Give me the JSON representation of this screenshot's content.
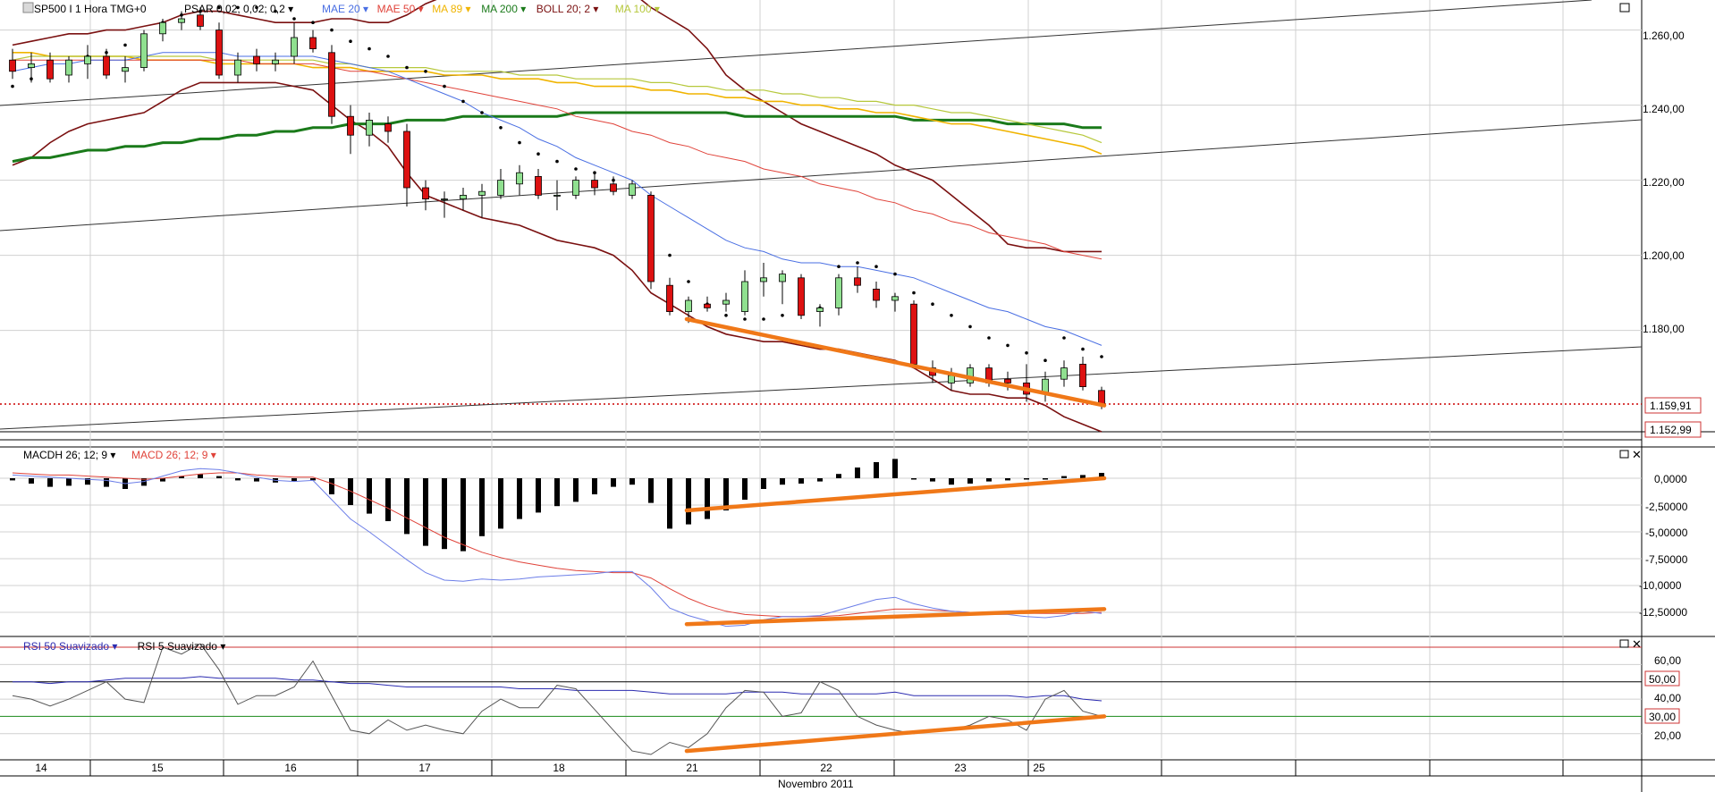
{
  "header": {
    "symbol": "SP500 I 1 Hora TMG+0",
    "indicators": [
      {
        "text": "PSAR 0,02; 0,02; 0,2",
        "color": "#000000"
      },
      {
        "text": "MAE 20",
        "color": "#4a6fe3"
      },
      {
        "text": "MAE 50",
        "color": "#e0433a"
      },
      {
        "text": "MA 89",
        "color": "#f0b400"
      },
      {
        "text": "MA 200",
        "color": "#1a7a1a"
      },
      {
        "text": "BOLL 20; 2",
        "color": "#7a1010"
      },
      {
        "text": "MA 100",
        "color": "#b6c83c"
      }
    ]
  },
  "macd_header": [
    {
      "text": "MACDH 26; 12; 9",
      "color": "#000000"
    },
    {
      "text": "MACD 26; 12; 9",
      "color": "#e0433a"
    }
  ],
  "rsi_header": [
    {
      "text": "RSI 50 Suavizado",
      "color": "#2b2bb0"
    },
    {
      "text": "RSI 5 Suavizado",
      "color": "#000000"
    }
  ],
  "price_axis": {
    "ticks": [
      "1.260,00",
      "1.240,00",
      "1.220,00",
      "1.200,00",
      "1.180,00"
    ],
    "last_price": "1.159,91",
    "low_price": "1.152,99"
  },
  "macd_axis": {
    "ticks": [
      "0,0000",
      "-2,50000",
      "-5,00000",
      "-7,50000",
      "-10,0000",
      "-12,50000"
    ]
  },
  "rsi_axis": {
    "ticks": [
      "60,00",
      "50,00",
      "40,00",
      "30,00",
      "20,00"
    ]
  },
  "x_axis": {
    "day_labels": [
      "14",
      "15",
      "16",
      "17",
      "18",
      "21",
      "22",
      "23",
      "25"
    ],
    "month_label": "Novembro 2011"
  },
  "chart_data": {
    "type": "candlestick",
    "ylim": [
      1153,
      1268
    ],
    "candles": [
      {
        "o": 1252,
        "h": 1255,
        "l": 1247,
        "c": 1249
      },
      {
        "o": 1250,
        "h": 1254,
        "l": 1246,
        "c": 1251
      },
      {
        "o": 1252,
        "h": 1254,
        "l": 1246,
        "c": 1247
      },
      {
        "o": 1248,
        "h": 1253,
        "l": 1246,
        "c": 1252
      },
      {
        "o": 1251,
        "h": 1256,
        "l": 1247,
        "c": 1253
      },
      {
        "o": 1253,
        "h": 1255,
        "l": 1247,
        "c": 1248
      },
      {
        "o": 1249,
        "h": 1253,
        "l": 1246,
        "c": 1250
      },
      {
        "o": 1250,
        "h": 1260,
        "l": 1249,
        "c": 1259
      },
      {
        "o": 1259,
        "h": 1263,
        "l": 1257,
        "c": 1262
      },
      {
        "o": 1262,
        "h": 1265,
        "l": 1260,
        "c": 1263
      },
      {
        "o": 1264,
        "h": 1266,
        "l": 1260,
        "c": 1261
      },
      {
        "o": 1260,
        "h": 1262,
        "l": 1247,
        "c": 1248
      },
      {
        "o": 1248,
        "h": 1254,
        "l": 1246,
        "c": 1252
      },
      {
        "o": 1253,
        "h": 1255,
        "l": 1249,
        "c": 1251
      },
      {
        "o": 1251,
        "h": 1254,
        "l": 1249,
        "c": 1252
      },
      {
        "o": 1253,
        "h": 1262,
        "l": 1251,
        "c": 1258
      },
      {
        "o": 1258,
        "h": 1260,
        "l": 1254,
        "c": 1255
      },
      {
        "o": 1254,
        "h": 1256,
        "l": 1235,
        "c": 1237
      },
      {
        "o": 1237,
        "h": 1240,
        "l": 1227,
        "c": 1232
      },
      {
        "o": 1232,
        "h": 1238,
        "l": 1229,
        "c": 1236
      },
      {
        "o": 1235,
        "h": 1237,
        "l": 1230,
        "c": 1233
      },
      {
        "o": 1233,
        "h": 1235,
        "l": 1213,
        "c": 1218
      },
      {
        "o": 1218,
        "h": 1220,
        "l": 1212,
        "c": 1215
      },
      {
        "o": 1215,
        "h": 1217,
        "l": 1210,
        "c": 1215
      },
      {
        "o": 1215,
        "h": 1218,
        "l": 1212,
        "c": 1216
      },
      {
        "o": 1216,
        "h": 1219,
        "l": 1210,
        "c": 1217
      },
      {
        "o": 1216,
        "h": 1223,
        "l": 1215,
        "c": 1220
      },
      {
        "o": 1219,
        "h": 1224,
        "l": 1216,
        "c": 1222
      },
      {
        "o": 1221,
        "h": 1223,
        "l": 1215,
        "c": 1216
      },
      {
        "o": 1216,
        "h": 1220,
        "l": 1212,
        "c": 1216
      },
      {
        "o": 1216,
        "h": 1221,
        "l": 1215,
        "c": 1220
      },
      {
        "o": 1220,
        "h": 1222,
        "l": 1216,
        "c": 1218
      },
      {
        "o": 1219,
        "h": 1221,
        "l": 1216,
        "c": 1217
      },
      {
        "o": 1216,
        "h": 1220,
        "l": 1215,
        "c": 1219
      },
      {
        "o": 1216,
        "h": 1217,
        "l": 1191,
        "c": 1193
      },
      {
        "o": 1192,
        "h": 1194,
        "l": 1184,
        "c": 1185
      },
      {
        "o": 1185,
        "h": 1189,
        "l": 1182,
        "c": 1188
      },
      {
        "o": 1187,
        "h": 1189,
        "l": 1185,
        "c": 1186
      },
      {
        "o": 1187,
        "h": 1190,
        "l": 1185,
        "c": 1188
      },
      {
        "o": 1185,
        "h": 1196,
        "l": 1184,
        "c": 1193
      },
      {
        "o": 1193,
        "h": 1198,
        "l": 1189,
        "c": 1194
      },
      {
        "o": 1193,
        "h": 1196,
        "l": 1187,
        "c": 1195
      },
      {
        "o": 1194,
        "h": 1195,
        "l": 1183,
        "c": 1184
      },
      {
        "o": 1185,
        "h": 1187,
        "l": 1181,
        "c": 1186
      },
      {
        "o": 1186,
        "h": 1195,
        "l": 1184,
        "c": 1194
      },
      {
        "o": 1194,
        "h": 1197,
        "l": 1190,
        "c": 1192
      },
      {
        "o": 1191,
        "h": 1193,
        "l": 1186,
        "c": 1188
      },
      {
        "o": 1188,
        "h": 1190,
        "l": 1185,
        "c": 1189
      },
      {
        "o": 1187,
        "h": 1188,
        "l": 1170,
        "c": 1171
      },
      {
        "o": 1170,
        "h": 1172,
        "l": 1166,
        "c": 1168
      },
      {
        "o": 1166,
        "h": 1170,
        "l": 1164,
        "c": 1168
      },
      {
        "o": 1166,
        "h": 1171,
        "l": 1165,
        "c": 1170
      },
      {
        "o": 1170,
        "h": 1171,
        "l": 1165,
        "c": 1166
      },
      {
        "o": 1167,
        "h": 1169,
        "l": 1164,
        "c": 1166
      },
      {
        "o": 1166,
        "h": 1171,
        "l": 1161,
        "c": 1163
      },
      {
        "o": 1163,
        "h": 1169,
        "l": 1161,
        "c": 1167
      },
      {
        "o": 1167,
        "h": 1172,
        "l": 1165,
        "c": 1170
      },
      {
        "o": 1171,
        "h": 1173,
        "l": 1164,
        "c": 1165
      },
      {
        "o": 1164,
        "h": 1165,
        "l": 1159,
        "c": 1160
      }
    ],
    "psar": [
      1245,
      1247,
      1249,
      1251,
      1253,
      1254,
      1256,
      1258,
      1262,
      1264,
      1265,
      1266,
      1266,
      1266,
      1265,
      1263,
      1262,
      1260,
      1257,
      1255,
      1253,
      1250,
      1249,
      1245,
      1241,
      1238,
      1234,
      1230,
      1227,
      1225,
      1223,
      1222,
      1220,
      1218,
      1210,
      1200,
      1193,
      1187,
      1184,
      1183,
      1183,
      1184,
      1185,
      1186,
      1197,
      1198,
      1197,
      1195,
      1190,
      1187,
      1184,
      1181,
      1178,
      1176,
      1174,
      1172,
      1178,
      1175,
      1173
    ],
    "mae20": [
      1249,
      1250,
      1251,
      1251,
      1252,
      1252,
      1252,
      1253,
      1254,
      1254,
      1254,
      1254,
      1253,
      1253,
      1253,
      1253,
      1253,
      1252,
      1251,
      1250,
      1249,
      1247,
      1245,
      1243,
      1241,
      1238,
      1236,
      1234,
      1231,
      1229,
      1226,
      1224,
      1222,
      1220,
      1216,
      1213,
      1210,
      1207,
      1204,
      1202,
      1201,
      1199,
      1198,
      1198,
      1197,
      1197,
      1196,
      1195,
      1194,
      1192,
      1190,
      1188,
      1186,
      1185,
      1183,
      1181,
      1180,
      1178,
      1176
    ],
    "mae50": [
      1252,
      1252,
      1252,
      1252,
      1252,
      1252,
      1252,
      1252,
      1252,
      1252,
      1252,
      1252,
      1252,
      1251,
      1251,
      1251,
      1251,
      1250,
      1249,
      1249,
      1248,
      1247,
      1246,
      1245,
      1244,
      1243,
      1242,
      1241,
      1240,
      1239,
      1237,
      1236,
      1235,
      1233,
      1232,
      1230,
      1229,
      1227,
      1226,
      1225,
      1223,
      1222,
      1221,
      1219,
      1218,
      1217,
      1215,
      1214,
      1212,
      1211,
      1209,
      1208,
      1206,
      1205,
      1204,
      1203,
      1201,
      1200,
      1199
    ],
    "ma89": [
      1254,
      1254,
      1253,
      1253,
      1253,
      1253,
      1253,
      1252,
      1252,
      1252,
      1252,
      1251,
      1251,
      1251,
      1251,
      1251,
      1250,
      1250,
      1250,
      1249,
      1249,
      1249,
      1249,
      1248,
      1248,
      1248,
      1247,
      1247,
      1247,
      1246,
      1246,
      1245,
      1245,
      1245,
      1244,
      1244,
      1243,
      1243,
      1242,
      1242,
      1241,
      1241,
      1240,
      1240,
      1239,
      1239,
      1238,
      1238,
      1237,
      1236,
      1235,
      1235,
      1234,
      1233,
      1232,
      1231,
      1230,
      1229,
      1227
    ],
    "ma100": [
      1252,
      1253,
      1253,
      1253,
      1253,
      1253,
      1253,
      1253,
      1253,
      1253,
      1253,
      1252,
      1252,
      1252,
      1252,
      1252,
      1252,
      1251,
      1251,
      1250,
      1250,
      1250,
      1250,
      1249,
      1249,
      1249,
      1249,
      1248,
      1248,
      1248,
      1247,
      1247,
      1247,
      1247,
      1246,
      1246,
      1245,
      1245,
      1244,
      1244,
      1244,
      1243,
      1243,
      1242,
      1242,
      1241,
      1241,
      1240,
      1240,
      1239,
      1238,
      1238,
      1237,
      1236,
      1235,
      1234,
      1233,
      1232,
      1230
    ],
    "ma200": [
      1225,
      1226,
      1226,
      1227,
      1228,
      1228,
      1229,
      1229,
      1230,
      1230,
      1231,
      1231,
      1232,
      1232,
      1233,
      1233,
      1234,
      1234,
      1235,
      1235,
      1235,
      1236,
      1236,
      1236,
      1237,
      1237,
      1237,
      1237,
      1237,
      1237,
      1238,
      1238,
      1238,
      1238,
      1238,
      1238,
      1238,
      1238,
      1238,
      1237,
      1237,
      1237,
      1237,
      1237,
      1237,
      1237,
      1237,
      1237,
      1236,
      1236,
      1236,
      1236,
      1236,
      1235,
      1235,
      1235,
      1235,
      1234,
      1234
    ],
    "boll_upper": [
      1256,
      1257,
      1258,
      1259,
      1259,
      1260,
      1260,
      1261,
      1262,
      1264,
      1265,
      1265,
      1264,
      1263,
      1262,
      1262,
      1262,
      1263,
      1263,
      1262,
      1262,
      1264,
      1267,
      1269,
      1270,
      1270,
      1271,
      1272,
      1273,
      1273,
      1273,
      1272,
      1271,
      1270,
      1266,
      1263,
      1260,
      1255,
      1248,
      1244,
      1241,
      1238,
      1235,
      1233,
      1231,
      1229,
      1227,
      1224,
      1222,
      1220,
      1216,
      1212,
      1208,
      1203,
      1202,
      1202,
      1201,
      1201,
      1201
    ],
    "boll_lower": [
      1224,
      1226,
      1230,
      1233,
      1235,
      1236,
      1237,
      1238,
      1241,
      1244,
      1246,
      1246,
      1246,
      1246,
      1246,
      1245,
      1244,
      1240,
      1236,
      1233,
      1229,
      1222,
      1216,
      1214,
      1212,
      1210,
      1209,
      1208,
      1206,
      1204,
      1203,
      1202,
      1200,
      1196,
      1190,
      1187,
      1184,
      1181,
      1179,
      1178,
      1177,
      1177,
      1176,
      1175,
      1175,
      1174,
      1173,
      1172,
      1170,
      1167,
      1164,
      1163,
      1163,
      1162,
      1162,
      1160,
      1157,
      1155,
      1153
    ],
    "trendlines_price": [
      {
        "from": [
          36,
          1183
        ],
        "to": [
          58,
          1160
        ]
      }
    ],
    "macd_hist": [
      -0.2,
      -0.5,
      -0.8,
      -0.7,
      -0.6,
      -0.8,
      -1.0,
      -0.7,
      -0.3,
      0.2,
      0.4,
      0.2,
      -0.2,
      -0.3,
      -0.4,
      -0.3,
      -0.2,
      -1.5,
      -2.5,
      -3.3,
      -4.0,
      -5.2,
      -6.3,
      -6.6,
      -6.8,
      -5.4,
      -4.7,
      -3.8,
      -3.2,
      -2.6,
      -2.2,
      -1.5,
      -0.8,
      -0.6,
      -2.3,
      -4.7,
      -4.3,
      -3.8,
      -3.0,
      -2.0,
      -1.0,
      -0.6,
      -0.5,
      -0.3,
      0.4,
      1.0,
      1.5,
      1.8,
      -0.1,
      -0.3,
      -0.6,
      -0.5,
      -0.3,
      -0.2,
      -0.1,
      0.0,
      0.2,
      0.3,
      0.5
    ],
    "macd_line": [
      0.3,
      0.2,
      0.1,
      0.0,
      -0.1,
      -0.2,
      -0.5,
      -0.3,
      0.2,
      0.7,
      0.9,
      0.8,
      0.5,
      0.1,
      -0.2,
      -0.3,
      -0.2,
      -2.0,
      -3.8,
      -5.0,
      -6.3,
      -7.6,
      -8.8,
      -9.5,
      -9.6,
      -9.4,
      -9.5,
      -9.4,
      -9.2,
      -9.1,
      -9.0,
      -8.9,
      -8.7,
      -8.7,
      -10.2,
      -12.1,
      -12.8,
      -13.3,
      -13.8,
      -13.7,
      -13.2,
      -12.9,
      -12.9,
      -12.8,
      -12.3,
      -11.8,
      -11.3,
      -11.1,
      -11.7,
      -12.1,
      -12.4,
      -12.5,
      -12.7,
      -12.7,
      -12.9,
      -13.0,
      -12.8,
      -12.4,
      -12.6
    ],
    "macd_signal": [
      0.5,
      0.4,
      0.3,
      0.3,
      0.2,
      0.1,
      0.0,
      -0.1,
      0.0,
      0.2,
      0.4,
      0.5,
      0.5,
      0.3,
      0.2,
      0.1,
      0.1,
      -0.5,
      -1.2,
      -2.0,
      -2.8,
      -3.7,
      -4.6,
      -5.5,
      -6.2,
      -6.9,
      -7.4,
      -7.8,
      -8.1,
      -8.4,
      -8.6,
      -8.7,
      -8.8,
      -8.8,
      -9.3,
      -10.3,
      -11.2,
      -11.9,
      -12.4,
      -12.7,
      -12.8,
      -12.9,
      -12.9,
      -12.9,
      -12.8,
      -12.6,
      -12.4,
      -12.2,
      -12.2,
      -12.3,
      -12.4,
      -12.5,
      -12.6,
      -12.6,
      -12.6,
      -12.6,
      -12.6,
      -12.6,
      -12.5
    ],
    "macd_ylim": [
      -15,
      2.5
    ],
    "trendlines_macd_hist": [
      {
        "from": [
          36,
          -3.0
        ],
        "to": [
          58,
          0.0
        ]
      }
    ],
    "trendlines_macd_line": [
      {
        "from": [
          36,
          -13.6
        ],
        "to": [
          58,
          -12.2
        ]
      }
    ],
    "rsi50": [
      50,
      50,
      49,
      50,
      50,
      51,
      52,
      52,
      52,
      52,
      53,
      52,
      52,
      52,
      52,
      51,
      51,
      50,
      49,
      49,
      48,
      47,
      47,
      47,
      47,
      47,
      47,
      46,
      46,
      46,
      45,
      45,
      45,
      45,
      44,
      43,
      43,
      43,
      43,
      44,
      44,
      44,
      43,
      43,
      43,
      43,
      43,
      44,
      42,
      42,
      42,
      42,
      42,
      42,
      41,
      42,
      42,
      40,
      39
    ],
    "rsi5": [
      42,
      40,
      36,
      40,
      45,
      50,
      40,
      38,
      70,
      66,
      72,
      57,
      37,
      42,
      42,
      47,
      62,
      42,
      22,
      20,
      28,
      22,
      25,
      22,
      20,
      33,
      40,
      35,
      35,
      48,
      46,
      34,
      22,
      10,
      8,
      15,
      12,
      20,
      35,
      45,
      44,
      30,
      32,
      50,
      45,
      30,
      25,
      22,
      20,
      22,
      22,
      25,
      30,
      28,
      22,
      40,
      45,
      33,
      30
    ],
    "rsi_ylim": [
      8,
      70
    ],
    "rsi_levels": {
      "overbought": 70,
      "upper": 50,
      "lower": 30
    },
    "trendlines_rsi": [
      {
        "from": [
          36,
          10
        ],
        "to": [
          58,
          30
        ]
      }
    ]
  }
}
